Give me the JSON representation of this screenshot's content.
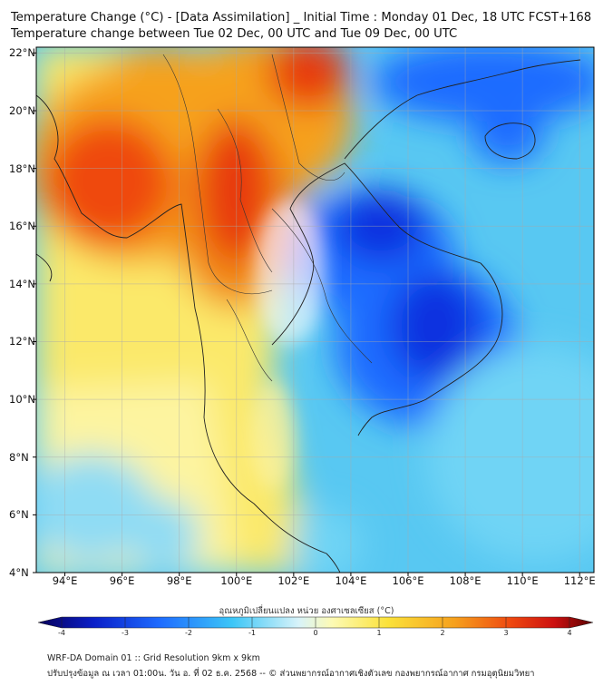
{
  "header": {
    "title_line1": "Temperature Change (°C) - [Data Assimilation] _ Initial Time : Monday 01 Dec, 18 UTC FCST+168",
    "title_line2": "Temperature change between Tue 02 Dec, 00 UTC and Tue 09 Dec, 00 UTC"
  },
  "map": {
    "lat_labels": [
      "22°N",
      "20°N",
      "18°N",
      "16°N",
      "14°N",
      "12°N",
      "10°N",
      "8°N",
      "6°N",
      "4°N"
    ],
    "lat_values": [
      22,
      20,
      18,
      16,
      14,
      12,
      10,
      8,
      6,
      4
    ],
    "lon_labels": [
      "94°E",
      "96°E",
      "98°E",
      "100°E",
      "102°E",
      "104°E",
      "106°E",
      "108°E",
      "110°E",
      "112°E"
    ],
    "lon_values": [
      94,
      96,
      98,
      100,
      102,
      104,
      106,
      108,
      110,
      112
    ],
    "lon_range": [
      93,
      112.5
    ],
    "lat_range": [
      4,
      22.2
    ],
    "grid": true
  },
  "colorbar": {
    "title": "อุณหภูมิเปลี่ยนแปลง หน่วย องศาเซลเซียส (°C)",
    "tick_labels": [
      "-4",
      "-3",
      "-2",
      "-1",
      "0",
      "1",
      "2",
      "3",
      "4"
    ],
    "range": [
      -4,
      4
    ],
    "colors": [
      "#08005a",
      "#0a1fc8",
      "#1e6cff",
      "#3cc6f7",
      "#d8f3f9",
      "#fdfab4",
      "#fbe23a",
      "#f6a11e",
      "#ef4a10",
      "#cc1010",
      "#5a0000"
    ]
  },
  "footer": {
    "line1": "WRF-DA Domain 01 :: Grid Resolution 9km x 9km",
    "line2": "ปรับปรุงข้อมูล ณ เวลา 01:00น. วัน อ. ที่ 02 ธ.ค. 2568 -- © ส่วนพยากรณ์อากาศเชิงตัวเลข กองพยากรณ์อากาศ กรมอุตุนิยมวิทยา"
  }
}
